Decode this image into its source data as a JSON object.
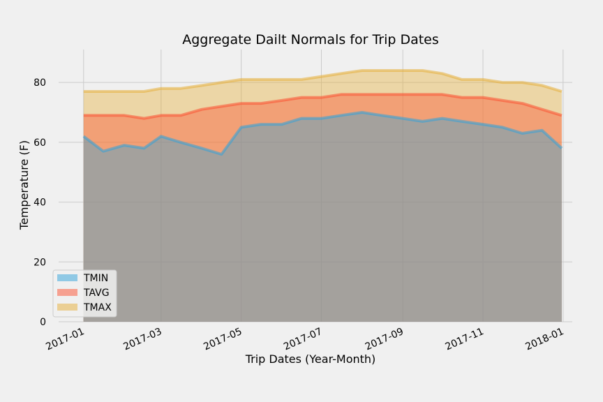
{
  "chart_data": {
    "type": "area",
    "title": "Aggregate Dailt Normals for Trip Dates",
    "xlabel": "Trip Dates (Year-Month)",
    "ylabel": "Temperature (F)",
    "x_tick_labels": [
      "2017-01",
      "2017-03",
      "2017-05",
      "2017-07",
      "2017-09",
      "2017-11",
      "2018-01"
    ],
    "y_ticks": [
      0,
      20,
      40,
      60,
      80
    ],
    "xlim": [
      "2016-12-13",
      "2018-01-08"
    ],
    "ylim": [
      0,
      91
    ],
    "grid": true,
    "legend_position": "lower-left",
    "x_dates": [
      "2017-01-01",
      "2017-01-16",
      "2017-02-01",
      "2017-02-16",
      "2017-03-01",
      "2017-03-16",
      "2017-04-01",
      "2017-04-16",
      "2017-05-01",
      "2017-05-16",
      "2017-06-01",
      "2017-06-16",
      "2017-07-01",
      "2017-07-16",
      "2017-08-01",
      "2017-08-16",
      "2017-09-01",
      "2017-09-16",
      "2017-10-01",
      "2017-10-16",
      "2017-11-01",
      "2017-11-16",
      "2017-12-01",
      "2017-12-16",
      "2017-12-31"
    ],
    "series": [
      {
        "name": "TMIN",
        "color": "#30a2da",
        "values": [
          62,
          57,
          59,
          58,
          62,
          60,
          58,
          56,
          65,
          66,
          66,
          68,
          68,
          69,
          70,
          69,
          68,
          67,
          68,
          67,
          66,
          65,
          63,
          64,
          58
        ]
      },
      {
        "name": "TAVG",
        "color": "#fc4f30",
        "values": [
          69,
          69,
          69,
          68,
          69,
          69,
          71,
          72,
          73,
          73,
          74,
          75,
          75,
          76,
          76,
          76,
          76,
          76,
          76,
          75,
          75,
          74,
          73,
          71,
          69
        ]
      },
      {
        "name": "TMAX",
        "color": "#e5ae38",
        "values": [
          77,
          77,
          77,
          77,
          78,
          78,
          79,
          80,
          81,
          81,
          81,
          81,
          82,
          83,
          84,
          84,
          84,
          84,
          83,
          81,
          81,
          80,
          80,
          79,
          77
        ]
      }
    ]
  }
}
